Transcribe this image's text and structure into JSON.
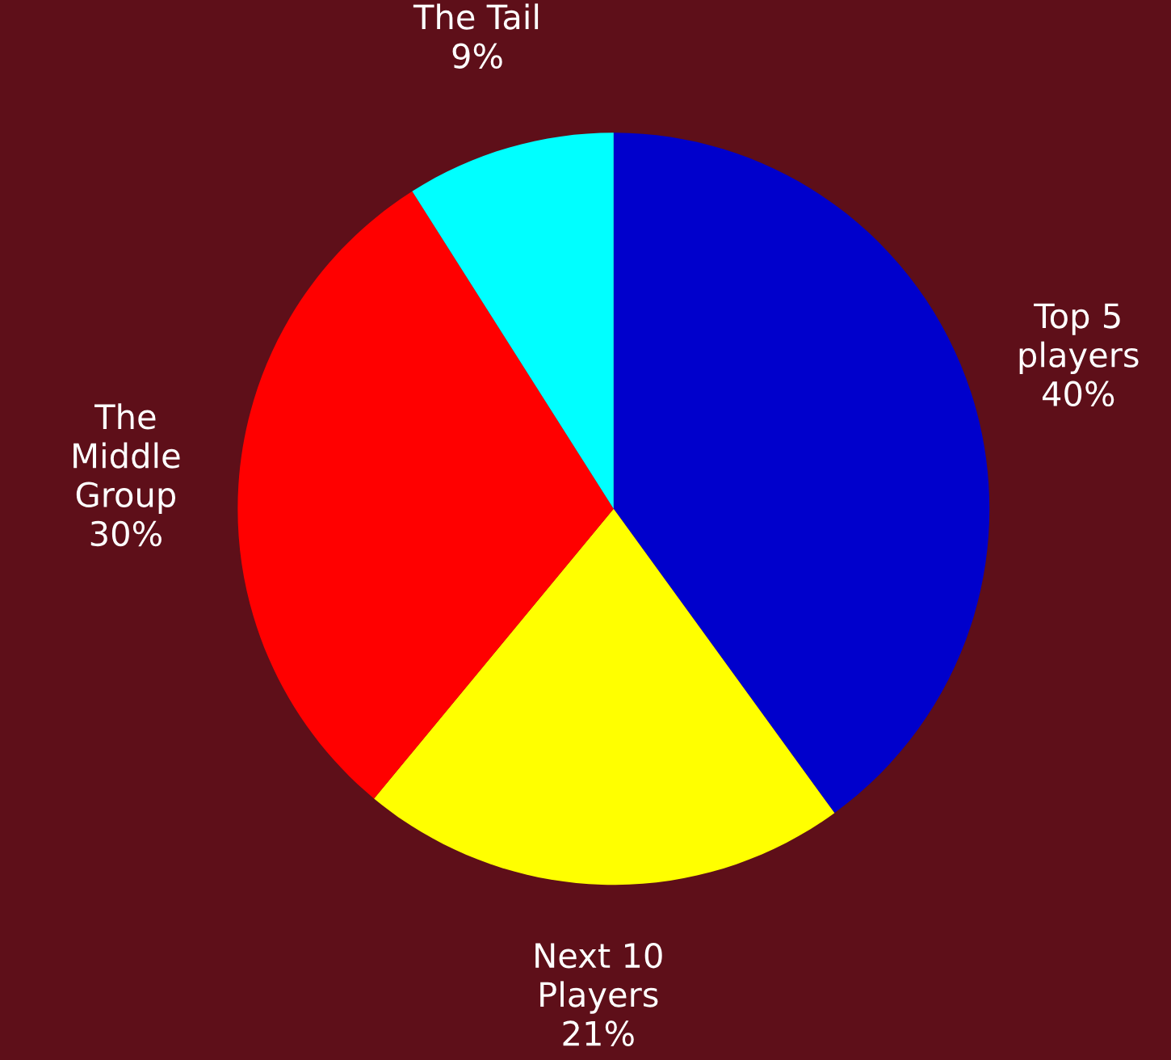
{
  "chart_data": {
    "type": "pie",
    "categories": [
      "Top 5\nplayers",
      "Next 10\nPlayers",
      "The\nMiddle\nGroup",
      "The Tail"
    ],
    "values": [
      40,
      21,
      30,
      9
    ],
    "value_labels": [
      "40%",
      "21%",
      "30%",
      "9%"
    ],
    "colors": [
      "#0000cc",
      "#ffff00",
      "#ff0000",
      "#00ffff"
    ]
  }
}
